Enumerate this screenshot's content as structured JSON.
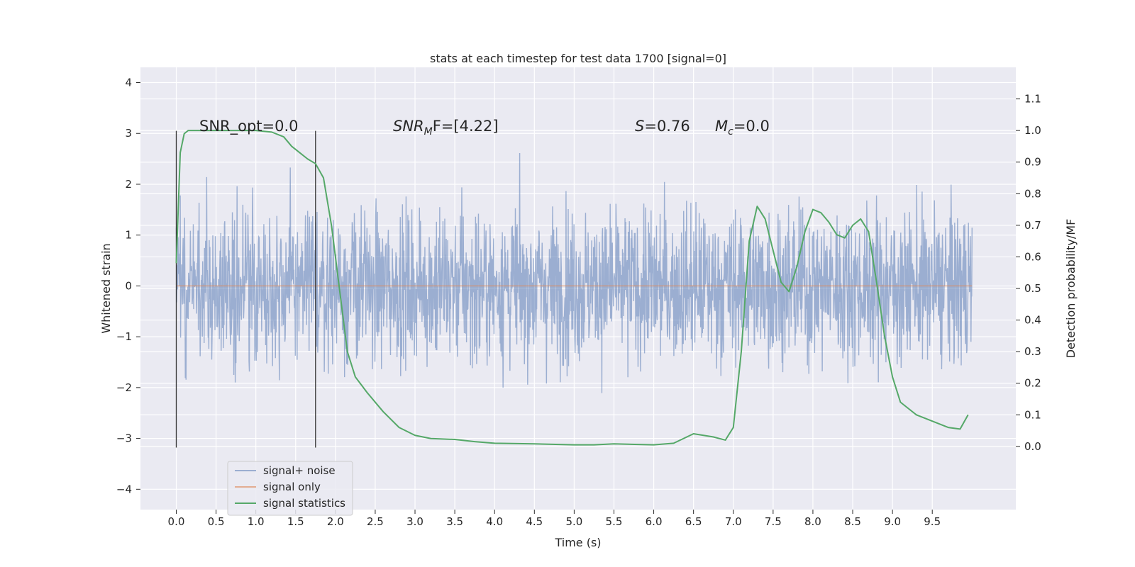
{
  "chart_data": {
    "type": "line",
    "title": "stats at each timestep for test data 1700 [signal=0]",
    "xlabel": "Time (s)",
    "ylabel": "Whitened strain",
    "y2label": "Detection probability/MF",
    "xlim": [
      -0.45,
      10.55
    ],
    "ylim": [
      -4.4,
      4.3
    ],
    "y2lim": [
      -0.2,
      1.2
    ],
    "x_ticks": [
      "0.0",
      "0.5",
      "1.0",
      "1.5",
      "2.0",
      "2.5",
      "3.0",
      "3.5",
      "4.0",
      "4.5",
      "5.0",
      "5.5",
      "6.0",
      "6.5",
      "7.0",
      "7.5",
      "8.0",
      "8.5",
      "9.0",
      "9.5"
    ],
    "y_ticks": [
      "4",
      "3",
      "2",
      "1",
      "0",
      "−1",
      "−2",
      "−3",
      "−4"
    ],
    "y2_ticks": [
      "1.1",
      "1.0",
      "0.9",
      "0.8",
      "0.7",
      "0.6",
      "0.5",
      "0.4",
      "0.3",
      "0.2",
      "0.1",
      "0.0"
    ],
    "grid": true,
    "legend_position": "lower-left",
    "vlines_x": [
      0.0,
      1.75
    ],
    "annotations": {
      "snr_opt": "SNR_opt=0.0",
      "snr_mf_main": "SNR",
      "snr_mf_sub": "M",
      "snr_mf_rest": "F=[4.22]",
      "s_var": "S",
      "s_rest": "=0.76",
      "mc_var": "M",
      "mc_sub": "c",
      "mc_rest": "=0.0"
    },
    "series": [
      {
        "name": "signal+ noise",
        "color": "#4c72b0",
        "description_of_values": "dense noise samples, roughly within [-3.5, 3.5]",
        "x_range": [
          0.0,
          10.0
        ]
      },
      {
        "name": "signal only",
        "color": "#dd8452",
        "x": [
          0.0,
          10.0
        ],
        "y": [
          0.0,
          0.0
        ]
      },
      {
        "name": "signal statistics",
        "color": "#55a868",
        "axis": "right",
        "x": [
          0.0,
          0.05,
          0.1,
          0.15,
          0.25,
          0.4,
          0.6,
          0.8,
          1.0,
          1.2,
          1.35,
          1.45,
          1.55,
          1.65,
          1.75,
          1.85,
          1.95,
          2.05,
          2.15,
          2.25,
          2.4,
          2.6,
          2.8,
          3.0,
          3.2,
          3.5,
          3.75,
          4.0,
          4.5,
          5.0,
          5.25,
          5.5,
          6.0,
          6.25,
          6.5,
          6.75,
          6.9,
          7.0,
          7.1,
          7.2,
          7.3,
          7.4,
          7.5,
          7.6,
          7.7,
          7.8,
          7.9,
          8.0,
          8.1,
          8.2,
          8.3,
          8.4,
          8.5,
          8.6,
          8.7,
          8.8,
          8.9,
          9.0,
          9.1,
          9.2,
          9.3,
          9.5,
          9.7,
          9.85,
          9.95
        ],
        "y": [
          0.58,
          0.93,
          0.99,
          1.0,
          1.0,
          1.0,
          1.0,
          1.0,
          1.0,
          0.995,
          0.98,
          0.95,
          0.93,
          0.91,
          0.895,
          0.85,
          0.7,
          0.5,
          0.3,
          0.22,
          0.17,
          0.11,
          0.06,
          0.035,
          0.025,
          0.022,
          0.015,
          0.01,
          0.008,
          0.005,
          0.005,
          0.008,
          0.005,
          0.01,
          0.04,
          0.03,
          0.02,
          0.06,
          0.3,
          0.65,
          0.76,
          0.72,
          0.62,
          0.52,
          0.49,
          0.57,
          0.68,
          0.75,
          0.74,
          0.71,
          0.67,
          0.66,
          0.7,
          0.72,
          0.68,
          0.52,
          0.35,
          0.22,
          0.14,
          0.12,
          0.1,
          0.08,
          0.06,
          0.055,
          0.1
        ]
      }
    ]
  }
}
